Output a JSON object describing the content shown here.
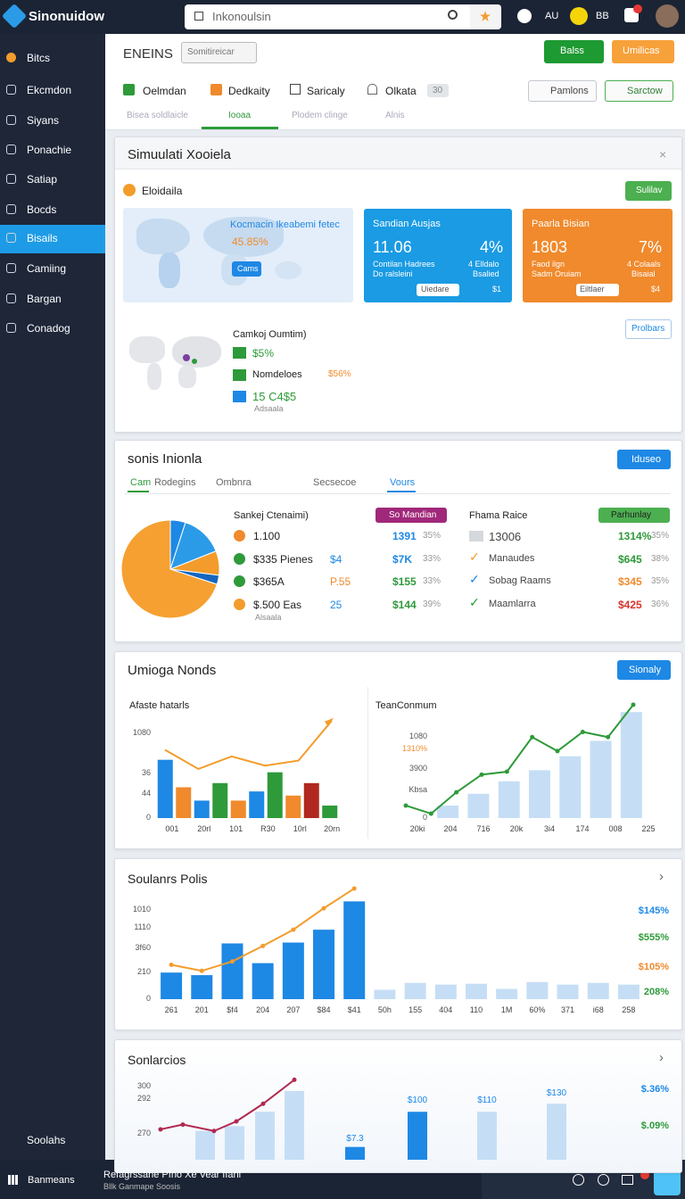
{
  "topbar": {
    "brand": "Sinonuidow",
    "search": "Inkonoulsin",
    "user": "AU",
    "badge": "BB"
  },
  "sidebar": {
    "items": [
      {
        "label": "Bitcs"
      },
      {
        "label": "Ekcmdon"
      },
      {
        "label": "Siyans"
      },
      {
        "label": "Ponachie"
      },
      {
        "label": "Satiap"
      },
      {
        "label": "Bocds"
      },
      {
        "label": "Bisails",
        "active": true
      },
      {
        "label": "Camiing"
      },
      {
        "label": "Bargan"
      },
      {
        "label": "Conadog"
      }
    ],
    "footer": "Soolahs"
  },
  "header": {
    "title": "ENEINS",
    "select": "Somitireicar",
    "buttons": [
      "Balss",
      "Umilicas"
    ],
    "tabs": [
      "Oelmdan",
      "Dedkaity",
      "Saricaly",
      "Olkata"
    ],
    "tab_badge": "30",
    "actions": [
      "Pamlons",
      "Sarctow"
    ],
    "subtabs": [
      "Bisea soldlaicle",
      "Iooaa",
      "Plodem clinge",
      "Alnis"
    ]
  },
  "overview": {
    "title": "Simuulati Xooiela",
    "section": "Eloidaila",
    "button": "Sulilav",
    "map": {
      "title": "Kocmacin Ikeabemi fetec",
      "value": "45.85%",
      "button": "Cams"
    },
    "tiles": [
      {
        "title": "Sandian Ausjas",
        "value": "11.06",
        "change": "4%",
        "notes": [
          "Contilan Hadrees",
          "Do ralsleini"
        ],
        "side": [
          "4 Elldalo",
          "Bsalied"
        ],
        "button": "Uiedare",
        "extra": "$1",
        "color": "#1a9be3"
      },
      {
        "title": "Paarla Bisian",
        "value": "1803",
        "change": "7%",
        "notes": [
          "Faod ilgn",
          "Sadm Oruiam"
        ],
        "side": [
          "4 Colaals",
          "Bisaial"
        ],
        "button": "Eiltlaer",
        "extra": "$4",
        "color": "#f08a2c"
      }
    ],
    "legend": {
      "title": "Camkoj Oumtim)",
      "items": [
        "$5%",
        "Nomdeloes",
        "15 C4$5"
      ],
      "extra": "$56%",
      "note": "Adsaala"
    },
    "more": "Prolbars"
  },
  "summary": {
    "title": "sonis Inionla",
    "button": "Iduseo",
    "tabs": [
      "Cam",
      "Rodegins",
      "Ombnra",
      "Secsecoe",
      "Vours"
    ],
    "pie": {
      "values": [
        5,
        14,
        8,
        3,
        70
      ],
      "colors": [
        "#1e88e5",
        "#2b9be8",
        "#f39c2c",
        "#1565c0",
        "#f6a032"
      ]
    },
    "headers": [
      "Sankej Ctenaimi)",
      "So Mandian",
      "Fhama Raice",
      "Parhunlay"
    ],
    "rows": [
      {
        "label": "1.100",
        "value": "1391",
        "pct": "35%",
        "name": "13006",
        "total": "1314%",
        "pct2": "35%",
        "dot_color": "#f08a2c",
        "total_color": "#2e9a3a"
      },
      {
        "label": "$335 Pienes",
        "sub": "$4",
        "value": "$7K",
        "pct": "33%",
        "name": "Manaudes",
        "total": "$645",
        "pct2": "38%",
        "dot_color": "#2e9a3a",
        "total_color": "#2e9a3a"
      },
      {
        "label": "$365A",
        "sub": "P.55",
        "value": "$155",
        "pct": "33%",
        "name": "Sobag Raams",
        "total": "$345",
        "pct2": "35%",
        "dot_color": "#2e9a3a",
        "total_color": "#f08a2c"
      },
      {
        "label": "$.500 Eas",
        "sub": "25",
        "value": "$144",
        "pct": "39%",
        "name": "Maamlarra",
        "total": "$425",
        "pct2": "36%",
        "dot_color": "#f39c2c",
        "total_color": "#d9342b"
      }
    ],
    "note": "Alsaala"
  },
  "trends": {
    "title": "Umioga Nonds",
    "button": "Sionaly",
    "charts": [
      {
        "title": "Afaste hatarls",
        "ylim": [
          0,
          120
        ],
        "yticks": [
          {
            "value": 102,
            "label": "1080"
          },
          {
            "value": 54,
            "label": "36"
          },
          {
            "value": 29,
            "label": "44"
          },
          0
        ],
        "categories": [
          "001",
          "20rl",
          "101",
          "R30",
          "10rl",
          "20rn"
        ],
        "bars": [
          70,
          37,
          21,
          42,
          21,
          32,
          55,
          27,
          42,
          15
        ],
        "bar_colors": [
          "#1e88e5",
          "#f08a2c",
          "#1e88e5",
          "#2e9a3a",
          "#f08a2c",
          "#1e88e5",
          "#2e9a3a",
          "#f08a2c",
          "#b0281f",
          "#2e9a3a"
        ],
        "line": [
          82,
          59,
          74,
          63,
          69,
          117
        ],
        "line_color": "#f39c2c"
      },
      {
        "title": "TeanConmum",
        "ylim": [
          0,
          160
        ],
        "yticks": [
          {
            "value": 110,
            "label": "1080"
          },
          {
            "value": 93,
            "label": "1310%"
          },
          {
            "value": 67,
            "label": "3900"
          },
          {
            "value": 38,
            "label": "Kbsa"
          },
          0
        ],
        "categories": [
          "20ki",
          "204",
          "716",
          "20k",
          "3i4",
          "174",
          "008",
          "225"
        ],
        "bars": [
          17,
          33,
          50,
          65,
          84,
          105,
          144
        ],
        "bar_colors": [
          "#c6def5",
          "#c6def5",
          "#c6def5",
          "#c6def5",
          "#c6def5",
          "#c6def5",
          "#c6def5"
        ],
        "line": [
          17,
          6,
          35,
          59,
          63,
          110,
          91,
          117,
          110,
          154
        ],
        "line_color": "#2e9a3a"
      }
    ]
  },
  "sources": {
    "title": "Soulanrs Polis",
    "chart": {
      "ylim": [
        0,
        130
      ],
      "yticks": [
        {
          "value": 104,
          "label": "1010"
        },
        {
          "value": 83,
          "label": "1110"
        },
        {
          "value": 59,
          "label": "3f60"
        },
        {
          "value": 31,
          "label": "210"
        },
        0
      ],
      "categories": [
        "261",
        "201",
        "$f4",
        "204",
        "207",
        "$84",
        "$41",
        "50h",
        "155",
        "404",
        "110",
        "1M",
        "60%",
        "371",
        "i68",
        "258"
      ],
      "bars": [
        31,
        28,
        65,
        42,
        66,
        81,
        114,
        11,
        19,
        17,
        18,
        12,
        20,
        17,
        19,
        17
      ],
      "bar_colors": [
        "#1e88e5",
        "#1e88e5",
        "#1e88e5",
        "#1e88e5",
        "#1e88e5",
        "#1e88e5",
        "#1e88e5",
        "#c6def5",
        "#c6def5",
        "#c6def5",
        "#c6def5",
        "#c6def5",
        "#c6def5",
        "#c6def5",
        "#c6def5",
        "#c6def5"
      ],
      "line": [
        40,
        33,
        44,
        62,
        81,
        106,
        129
      ],
      "line_color": "#f39c2c",
      "side_labels": [
        {
          "text": "$145%",
          "color": "#1e88e5"
        },
        {
          "text": "$555%",
          "color": "#2e9a3a"
        },
        {
          "text": "$105%",
          "color": "#f08a2c"
        },
        {
          "text": "208%",
          "color": "#2e9a3a"
        }
      ]
    }
  },
  "scenarios": {
    "title": "Sonlarcios",
    "chart": {
      "ylim": [
        254,
        307
      ],
      "yticks": [
        300,
        292,
        270
      ],
      "bars": [
        272,
        275,
        284,
        297,
        262,
        284,
        284,
        289
      ],
      "bar_colors": [
        "#c6def5",
        "#c6def5",
        "#c6def5",
        "#c6def5",
        "#1e88e5",
        "#1e88e5",
        "#c6def5",
        "#c6def5"
      ],
      "line": [
        273,
        276,
        272,
        278,
        289,
        304
      ],
      "line_color": "#b0284f",
      "bar_labels": [
        "$7.3",
        "$100",
        "$110",
        "$130"
      ],
      "side_labels": [
        {
          "text": "$.36%",
          "color": "#1e88e5"
        },
        {
          "text": "$.09%",
          "color": "#2e9a3a"
        }
      ]
    }
  },
  "footer": {
    "menu": "Banmeans",
    "title": "Refagrssane Pfno Xe Vear Ifaril",
    "subtitle": "Bllk Ganmape Soosis"
  }
}
